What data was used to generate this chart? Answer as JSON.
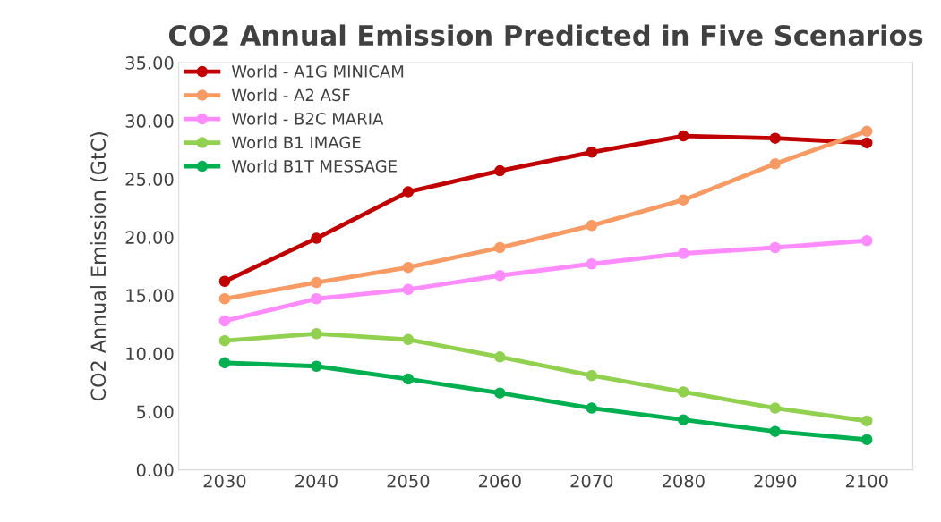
{
  "chart_data": {
    "type": "line",
    "title": "CO2 Annual Emission Predicted in Five Scenarios",
    "ylabel": "CO2 Annual Emission (GtC)",
    "categories": [
      "2030",
      "2040",
      "2050",
      "2060",
      "2070",
      "2080",
      "2090",
      "2100"
    ],
    "series": [
      {
        "name": "World - A1G MINICAM",
        "color": "#c00000",
        "values": [
          16.2,
          19.9,
          23.9,
          25.7,
          27.3,
          28.7,
          28.5,
          28.1
        ]
      },
      {
        "name": "World - A2 ASF",
        "color": "#f79a64",
        "values": [
          14.7,
          16.1,
          17.4,
          19.1,
          21.0,
          23.2,
          26.3,
          29.1
        ]
      },
      {
        "name": "World - B2C MARIA",
        "color": "#ff8cff",
        "values": [
          12.8,
          14.7,
          15.5,
          16.7,
          17.7,
          18.6,
          19.1,
          19.7
        ]
      },
      {
        "name": "World B1 IMAGE",
        "color": "#92d050",
        "values": [
          11.1,
          11.7,
          11.2,
          9.7,
          8.1,
          6.7,
          5.3,
          4.2
        ]
      },
      {
        "name": "World B1T MESSAGE",
        "color": "#00b050",
        "values": [
          9.2,
          8.9,
          7.8,
          6.6,
          5.3,
          4.3,
          3.3,
          2.6
        ]
      }
    ],
    "ylim": [
      0,
      35
    ],
    "yticks": [
      {
        "value": 0,
        "label": "0.00"
      },
      {
        "value": 5,
        "label": "5.00"
      },
      {
        "value": 10,
        "label": "10.00"
      },
      {
        "value": 15,
        "label": "15.00"
      },
      {
        "value": 20,
        "label": "20.00"
      },
      {
        "value": 25,
        "label": "25.00"
      },
      {
        "value": 30,
        "label": "30.00"
      },
      {
        "value": 35,
        "label": "35.00"
      }
    ],
    "legend": "top left",
    "marker": "circle",
    "line_style": "solid",
    "grid": false
  }
}
